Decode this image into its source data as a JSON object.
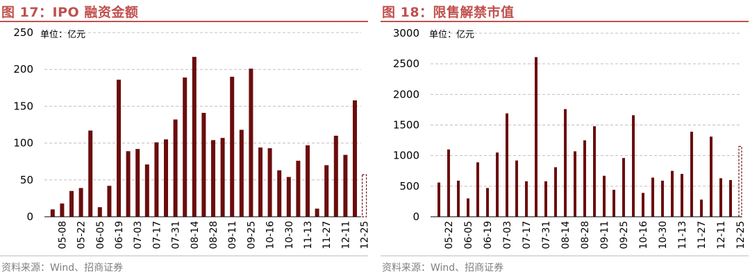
{
  "colors": {
    "title": "#c0504d",
    "bar": "#6b0d0d",
    "grid": "#bfbfbf",
    "source": "#7f7f7f"
  },
  "chart_data": [
    {
      "type": "bar",
      "title": "图 17：IPO 融资金额",
      "unit_label": "单位：亿元",
      "source": "资料来源：Wind、招商证券",
      "ylim": [
        0,
        250
      ],
      "yticks": [
        0,
        50,
        100,
        150,
        200,
        250
      ],
      "grid": true,
      "values": [
        10,
        18,
        35,
        39,
        117,
        13,
        42,
        186,
        89,
        92,
        71,
        101,
        105,
        132,
        189,
        217,
        141,
        104,
        107,
        190,
        118,
        201,
        94,
        93,
        63,
        54,
        76,
        97,
        11,
        70,
        110,
        84,
        158
      ],
      "estimated_last": {
        "value": 57,
        "style": "dashed"
      },
      "tick_labels": [
        "05-08",
        "05-22",
        "06-05",
        "06-19",
        "07-03",
        "07-17",
        "07-31",
        "08-14",
        "08-28",
        "09-11",
        "09-25",
        "10-16",
        "10-30",
        "11-13",
        "11-27",
        "12-11",
        "12-25"
      ]
    },
    {
      "type": "bar",
      "title": "图 18：限售解禁市值",
      "unit_label": "单位：亿元",
      "source": "资料来源：Wind、招商证券",
      "ylim": [
        0,
        3000
      ],
      "yticks": [
        0,
        500,
        1000,
        1500,
        2000,
        2500,
        3000
      ],
      "grid": true,
      "values": [
        560,
        1100,
        590,
        300,
        890,
        470,
        1050,
        1690,
        920,
        580,
        2610,
        580,
        810,
        1760,
        1070,
        1250,
        1480,
        670,
        440,
        960,
        1660,
        390,
        640,
        590,
        750,
        700,
        1390,
        280,
        1310,
        630,
        600
      ],
      "estimated_last": {
        "value": 1150,
        "style": "dashed"
      },
      "tick_labels": [
        "05-22",
        "06-05",
        "06-19",
        "07-03",
        "07-17",
        "07-31",
        "08-14",
        "08-28",
        "09-11",
        "09-25",
        "10-16",
        "10-30",
        "11-13",
        "11-27",
        "12-11",
        "12-25"
      ]
    }
  ]
}
